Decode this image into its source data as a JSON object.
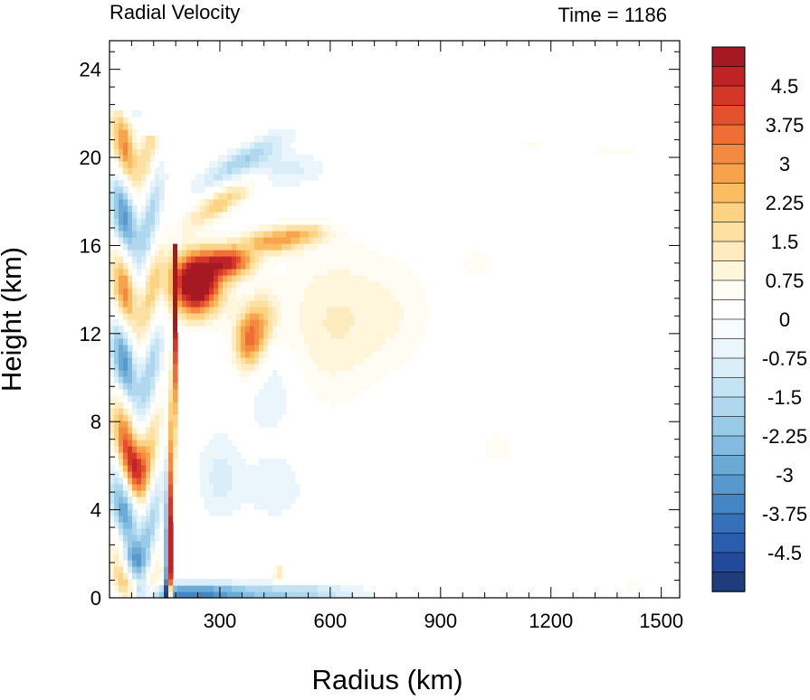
{
  "chart_data": {
    "type": "heatmap",
    "title": "Radial Velocity",
    "time_label": "Time = 1186",
    "xlabel": "Radius (km)",
    "ylabel": "Height (km)",
    "xlim": [
      0,
      1550
    ],
    "ylim": [
      0,
      25.3
    ],
    "xticks": [
      300,
      600,
      900,
      1200,
      1500
    ],
    "xtick_labels": [
      "300",
      "600",
      "900",
      "1200",
      "1500"
    ],
    "yticks": [
      0,
      4,
      8,
      12,
      16,
      20,
      24
    ],
    "ytick_labels": [
      "0",
      "4",
      "8",
      "12",
      "16",
      "20",
      "24"
    ],
    "colorbar": {
      "min": -5.25,
      "max": 5.25,
      "step": 0.375,
      "labels": [
        "4.5",
        "3.75",
        "3",
        "2.25",
        "1.5",
        "0.75",
        "0",
        "-0.75",
        "-1.5",
        "-2.25",
        "-3",
        "-3.75",
        "-4.5"
      ],
      "label_values": [
        4.5,
        3.75,
        3,
        2.25,
        1.5,
        0.75,
        0,
        -0.75,
        -1.5,
        -2.25,
        -3,
        -3.75,
        -4.5
      ],
      "colors": [
        "#1f3d7a",
        "#23499b",
        "#2b5daf",
        "#3670bb",
        "#4585c4",
        "#5898cd",
        "#6caad6",
        "#82bbdf",
        "#98cbe7",
        "#afd8ee",
        "#c5e4f3",
        "#d9eef8",
        "#eaf6fb",
        "#f8fcfe",
        "#ffffff",
        "#fffdf3",
        "#fff6dc",
        "#feecc0",
        "#fde1a2",
        "#fcd283",
        "#fbbd62",
        "#f8a34c",
        "#f48a3f",
        "#ee6e35",
        "#e3502d",
        "#d43728",
        "#bf2325",
        "#a51a22"
      ]
    },
    "features": [
      {
        "name": "upper outflow jet",
        "r": [
          175,
          400
        ],
        "z": [
          12.5,
          16
        ],
        "value": 6
      },
      {
        "name": "outflow extension",
        "r": [
          250,
          560
        ],
        "z": [
          15.2,
          17
        ],
        "value": 2.6
      },
      {
        "name": "mid-level outflow lobe",
        "r": [
          300,
          450
        ],
        "z": [
          10.5,
          13.5
        ],
        "value": 3
      },
      {
        "name": "broad weak outflow",
        "r": [
          430,
          900
        ],
        "z": [
          8,
          16.5
        ],
        "value": 0.8
      },
      {
        "name": "eyewall updraft band",
        "r": [
          150,
          185
        ],
        "z": [
          0,
          16
        ],
        "value": 4
      },
      {
        "name": "boundary-layer inflow",
        "r": [
          100,
          420
        ],
        "z": [
          0,
          1
        ],
        "value": -3.2
      },
      {
        "name": "inner-core inflow",
        "r": [
          120,
          175
        ],
        "z": [
          0,
          5
        ],
        "value": -4.2
      },
      {
        "name": "upper inflow band",
        "r": [
          250,
          580
        ],
        "z": [
          17.5,
          20.5
        ],
        "value": -1.2
      },
      {
        "name": "weak far-field outflow",
        "r": [
          1000,
          1100
        ],
        "z": [
          5.5,
          8
        ],
        "value": 0.6
      }
    ]
  }
}
